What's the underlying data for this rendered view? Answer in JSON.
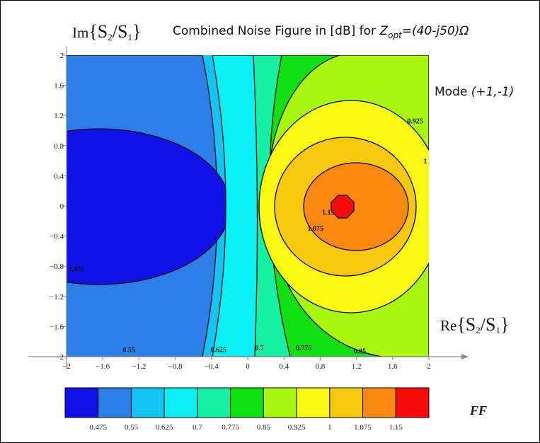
{
  "chart_data": {
    "type": "contour",
    "title_parts": [
      "Combined Noise Figure in [dB] for ",
      "Z",
      "opt",
      "=(40-j50)",
      "Ω"
    ],
    "mode_label": [
      "Mode ",
      "(+1,-1)"
    ],
    "xlabel": [
      "Re",
      "{S",
      "2",
      "/S",
      "1",
      "}"
    ],
    "ylabel": [
      "Im",
      "{S",
      "2",
      "/S",
      "1",
      "}"
    ],
    "xlim": [
      -2,
      2
    ],
    "ylim": [
      -2,
      2
    ],
    "xticks": [
      "−2",
      "−1.6",
      "−1.2",
      "−0.8",
      "−0.4",
      "0",
      "0.4",
      "0.8",
      "1.2",
      "1.6",
      "2"
    ],
    "yticks": [
      "−2",
      "−1.6",
      "−1.2",
      "−0.8",
      "−0.4",
      "0",
      "0.4",
      "0.8",
      "1.2",
      "1.6",
      "2"
    ],
    "contour_levels": [
      0.475,
      0.55,
      0.625,
      0.7,
      0.775,
      0.85,
      0.925,
      1,
      1.075,
      1.15
    ],
    "contour_labels": [
      {
        "text": "0.475",
        "x": -1.98,
        "y": -0.83
      },
      {
        "text": "0.55",
        "x": -1.38,
        "y": -1.9
      },
      {
        "text": "0.625",
        "x": -0.41,
        "y": -1.9
      },
      {
        "text": "0.7",
        "x": 0.08,
        "y": -1.88
      },
      {
        "text": "0.775",
        "x": 0.53,
        "y": -1.88
      },
      {
        "text": "0.85",
        "x": 1.17,
        "y": -1.92
      },
      {
        "text": "0.925",
        "x": 1.76,
        "y": 1.13
      },
      {
        "text": "1",
        "x": 1.94,
        "y": 0.6
      },
      {
        "text": "1.075",
        "x": 0.66,
        "y": -0.29
      },
      {
        "text": "1.15",
        "x": 0.82,
        "y": -0.08
      }
    ],
    "colorbar": {
      "label": "FF",
      "colors": [
        "#1010e8",
        "#2a80e8",
        "#14c4f4",
        "#08f0f4",
        "#14f0a4",
        "#10e010",
        "#a8f810",
        "#f8f810",
        "#f8c810",
        "#f88810",
        "#f80a0a"
      ],
      "ticks": [
        "0.475",
        "0.55",
        "0.625",
        "0.7",
        "0.775",
        "0.85",
        "0.925",
        "1",
        "1.075",
        "1.15"
      ]
    }
  }
}
